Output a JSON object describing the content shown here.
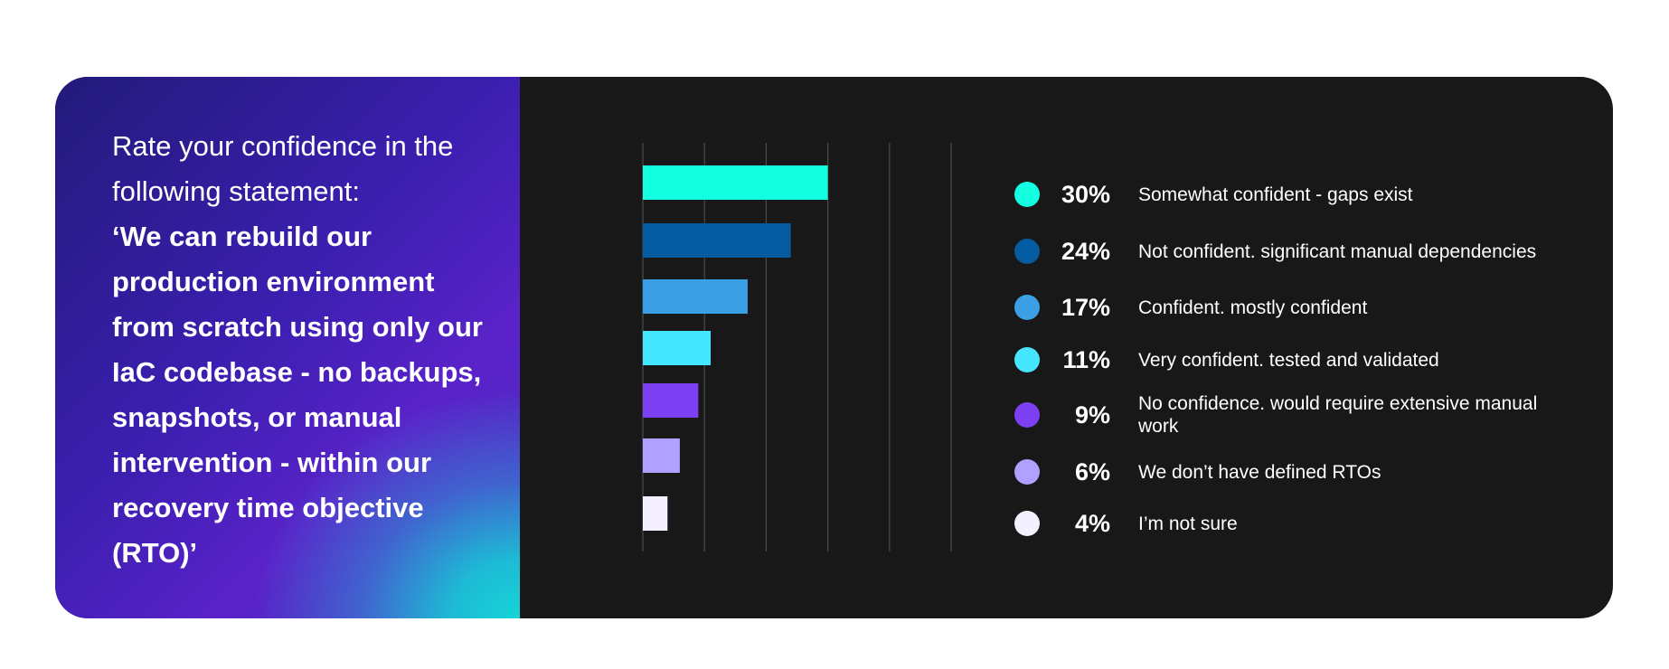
{
  "question": {
    "intro": "Rate your confidence in the following statement:",
    "statement": "‘We can rebuild our production environment from scratch using only our IaC codebase -  no backups, snapshots, or manual intervention - within our recovery time objective (RTO)’"
  },
  "chart_data": {
    "type": "bar",
    "orientation": "horizontal",
    "categories": [
      "Somewhat confident - gaps exist",
      "Not confident. significant manual dependencies",
      "Confident. mostly confident",
      "Very confident. tested and validated",
      "No confidence. would require extensive manual work",
      "We don’t have defined RTOs",
      "I’m not sure"
    ],
    "values": [
      30,
      24,
      17,
      11,
      9,
      6,
      4
    ],
    "value_labels": [
      "30%",
      "24%",
      "17%",
      "11%",
      "9%",
      "6%",
      "4%"
    ],
    "colors": [
      "#13ffdf",
      "#055b9f",
      "#3b9fe6",
      "#44e7ff",
      "#7c3ff2",
      "#b0a0ff",
      "#f4f0ff"
    ],
    "xlim": [
      0,
      50
    ],
    "grid": true,
    "legend_position": "right"
  }
}
